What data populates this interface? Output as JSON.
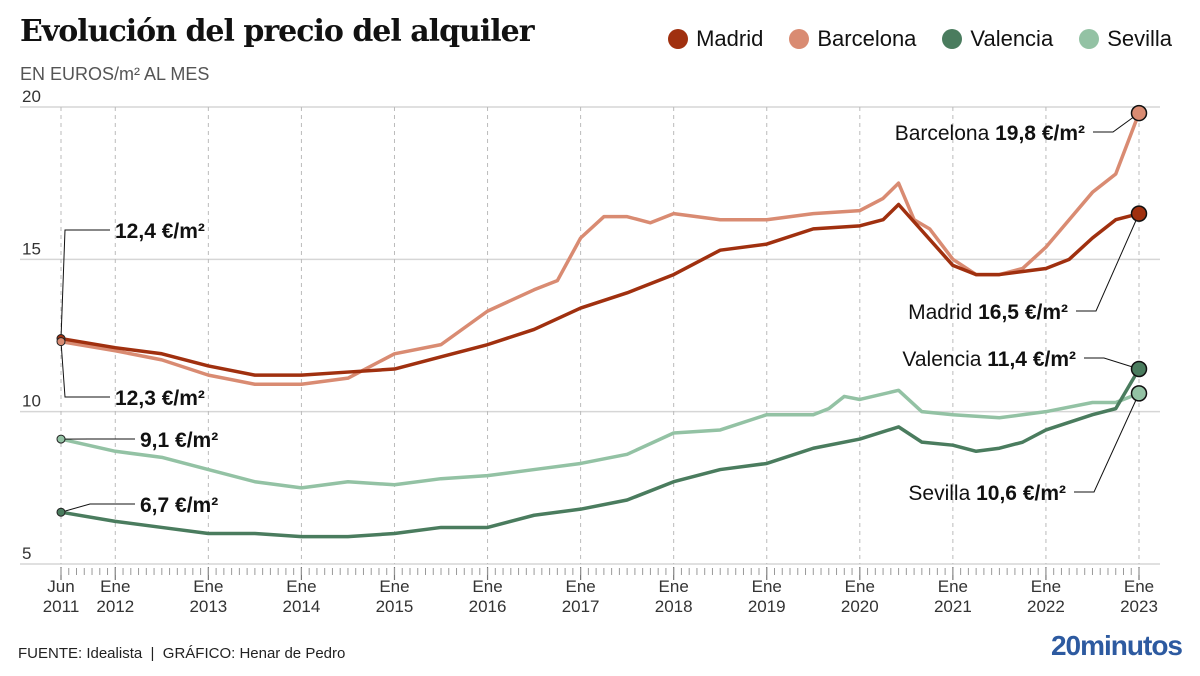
{
  "header": {
    "title": "Evolución del precio del alquiler",
    "subtitle": "EN EUROS/m² AL MES"
  },
  "footer": {
    "source": "FUENTE: Idealista  |  GRÁFICO: Henar de Pedro",
    "logo": "20minutos"
  },
  "chart_data": {
    "type": "line",
    "title": "Evolución del precio del alquiler",
    "ylabel": "EN EUROS/m² AL MES",
    "ylim": [
      5,
      20
    ],
    "yticks": [
      5,
      10,
      15,
      20
    ],
    "xlim": [
      "2011-06",
      "2023-01"
    ],
    "xticks": [
      {
        "date": "2011-06",
        "label": [
          "Jun",
          "2011"
        ]
      },
      {
        "date": "2012-01",
        "label": [
          "Ene",
          "2012"
        ]
      },
      {
        "date": "2013-01",
        "label": [
          "Ene",
          "2013"
        ]
      },
      {
        "date": "2014-01",
        "label": [
          "Ene",
          "2014"
        ]
      },
      {
        "date": "2015-01",
        "label": [
          "Ene",
          "2015"
        ]
      },
      {
        "date": "2016-01",
        "label": [
          "Ene",
          "2016"
        ]
      },
      {
        "date": "2017-01",
        "label": [
          "Ene",
          "2017"
        ]
      },
      {
        "date": "2018-01",
        "label": [
          "Ene",
          "2018"
        ]
      },
      {
        "date": "2019-01",
        "label": [
          "Ene",
          "2019"
        ]
      },
      {
        "date": "2020-01",
        "label": [
          "Ene",
          "2020"
        ]
      },
      {
        "date": "2021-01",
        "label": [
          "Ene",
          "2021"
        ]
      },
      {
        "date": "2022-01",
        "label": [
          "Ene",
          "2022"
        ]
      },
      {
        "date": "2023-01",
        "label": [
          "Ene",
          "2023"
        ]
      }
    ],
    "grid": true,
    "legend": "top-right",
    "series": [
      {
        "name": "Madrid",
        "color": "#a0300f",
        "points": [
          [
            "2011-06",
            12.4
          ],
          [
            "2012-01",
            12.1
          ],
          [
            "2012-07",
            11.9
          ],
          [
            "2013-01",
            11.5
          ],
          [
            "2013-07",
            11.2
          ],
          [
            "2014-01",
            11.2
          ],
          [
            "2014-07",
            11.3
          ],
          [
            "2015-01",
            11.4
          ],
          [
            "2015-07",
            11.8
          ],
          [
            "2016-01",
            12.2
          ],
          [
            "2016-07",
            12.7
          ],
          [
            "2017-01",
            13.4
          ],
          [
            "2017-07",
            13.9
          ],
          [
            "2018-01",
            14.5
          ],
          [
            "2018-07",
            15.3
          ],
          [
            "2019-01",
            15.5
          ],
          [
            "2019-07",
            16.0
          ],
          [
            "2020-01",
            16.1
          ],
          [
            "2020-04",
            16.3
          ],
          [
            "2020-06",
            16.8
          ],
          [
            "2021-01",
            14.8
          ],
          [
            "2021-04",
            14.5
          ],
          [
            "2021-07",
            14.5
          ],
          [
            "2021-10",
            14.6
          ],
          [
            "2022-01",
            14.7
          ],
          [
            "2022-04",
            15.0
          ],
          [
            "2022-07",
            15.7
          ],
          [
            "2022-10",
            16.3
          ],
          [
            "2023-01",
            16.5
          ]
        ]
      },
      {
        "name": "Barcelona",
        "color": "#d98b72",
        "points": [
          [
            "2011-06",
            12.3
          ],
          [
            "2012-01",
            12.0
          ],
          [
            "2012-07",
            11.7
          ],
          [
            "2013-01",
            11.2
          ],
          [
            "2013-07",
            10.9
          ],
          [
            "2014-01",
            10.9
          ],
          [
            "2014-07",
            11.1
          ],
          [
            "2015-01",
            11.9
          ],
          [
            "2015-07",
            12.2
          ],
          [
            "2016-01",
            13.3
          ],
          [
            "2016-07",
            14.0
          ],
          [
            "2016-10",
            14.3
          ],
          [
            "2017-01",
            15.7
          ],
          [
            "2017-04",
            16.4
          ],
          [
            "2017-07",
            16.4
          ],
          [
            "2017-10",
            16.2
          ],
          [
            "2018-01",
            16.5
          ],
          [
            "2018-07",
            16.3
          ],
          [
            "2019-01",
            16.3
          ],
          [
            "2019-07",
            16.5
          ],
          [
            "2020-01",
            16.6
          ],
          [
            "2020-04",
            17.0
          ],
          [
            "2020-06",
            17.5
          ],
          [
            "2020-08",
            16.3
          ],
          [
            "2020-10",
            16.0
          ],
          [
            "2021-01",
            15.0
          ],
          [
            "2021-04",
            14.5
          ],
          [
            "2021-07",
            14.5
          ],
          [
            "2021-10",
            14.7
          ],
          [
            "2022-01",
            15.4
          ],
          [
            "2022-04",
            16.3
          ],
          [
            "2022-07",
            17.2
          ],
          [
            "2022-10",
            17.8
          ],
          [
            "2023-01",
            19.8
          ]
        ]
      },
      {
        "name": "Valencia",
        "color": "#4a7c5e",
        "points": [
          [
            "2011-06",
            6.7
          ],
          [
            "2012-01",
            6.4
          ],
          [
            "2012-07",
            6.2
          ],
          [
            "2013-01",
            6.0
          ],
          [
            "2013-07",
            6.0
          ],
          [
            "2014-01",
            5.9
          ],
          [
            "2014-07",
            5.9
          ],
          [
            "2015-01",
            6.0
          ],
          [
            "2015-07",
            6.2
          ],
          [
            "2016-01",
            6.2
          ],
          [
            "2016-07",
            6.6
          ],
          [
            "2017-01",
            6.8
          ],
          [
            "2017-07",
            7.1
          ],
          [
            "2018-01",
            7.7
          ],
          [
            "2018-07",
            8.1
          ],
          [
            "2019-01",
            8.3
          ],
          [
            "2019-07",
            8.8
          ],
          [
            "2020-01",
            9.1
          ],
          [
            "2020-06",
            9.5
          ],
          [
            "2020-09",
            9.0
          ],
          [
            "2021-01",
            8.9
          ],
          [
            "2021-04",
            8.7
          ],
          [
            "2021-07",
            8.8
          ],
          [
            "2021-10",
            9.0
          ],
          [
            "2022-01",
            9.4
          ],
          [
            "2022-07",
            9.9
          ],
          [
            "2022-10",
            10.1
          ],
          [
            "2023-01",
            11.4
          ]
        ]
      },
      {
        "name": "Sevilla",
        "color": "#93c2a4",
        "points": [
          [
            "2011-06",
            9.1
          ],
          [
            "2012-01",
            8.7
          ],
          [
            "2012-07",
            8.5
          ],
          [
            "2013-01",
            8.1
          ],
          [
            "2013-07",
            7.7
          ],
          [
            "2014-01",
            7.5
          ],
          [
            "2014-07",
            7.7
          ],
          [
            "2015-01",
            7.6
          ],
          [
            "2015-07",
            7.8
          ],
          [
            "2016-01",
            7.9
          ],
          [
            "2016-07",
            8.1
          ],
          [
            "2017-01",
            8.3
          ],
          [
            "2017-07",
            8.6
          ],
          [
            "2018-01",
            9.3
          ],
          [
            "2018-07",
            9.4
          ],
          [
            "2019-01",
            9.9
          ],
          [
            "2019-07",
            9.9
          ],
          [
            "2019-09",
            10.1
          ],
          [
            "2019-11",
            10.5
          ],
          [
            "2020-01",
            10.4
          ],
          [
            "2020-06",
            10.7
          ],
          [
            "2020-09",
            10.0
          ],
          [
            "2021-01",
            9.9
          ],
          [
            "2021-07",
            9.8
          ],
          [
            "2022-01",
            10.0
          ],
          [
            "2022-07",
            10.3
          ],
          [
            "2022-10",
            10.3
          ],
          [
            "2023-01",
            10.6
          ]
        ]
      }
    ],
    "annotations": {
      "start": [
        {
          "series": "Madrid",
          "value": "12,4 €/m²"
        },
        {
          "series": "Barcelona",
          "value": "12,3 €/m²"
        },
        {
          "series": "Sevilla",
          "value": "9,1 €/m²"
        },
        {
          "series": "Valencia",
          "value": "6,7 €/m²"
        }
      ],
      "end": [
        {
          "series": "Barcelona",
          "name": "Barcelona",
          "value": "19,8 €/m²"
        },
        {
          "series": "Madrid",
          "name": "Madrid",
          "value": "16,5 €/m²"
        },
        {
          "series": "Valencia",
          "name": "Valencia",
          "value": "11,4 €/m²"
        },
        {
          "series": "Sevilla",
          "name": "Sevilla",
          "value": "10,6 €/m²"
        }
      ]
    }
  }
}
